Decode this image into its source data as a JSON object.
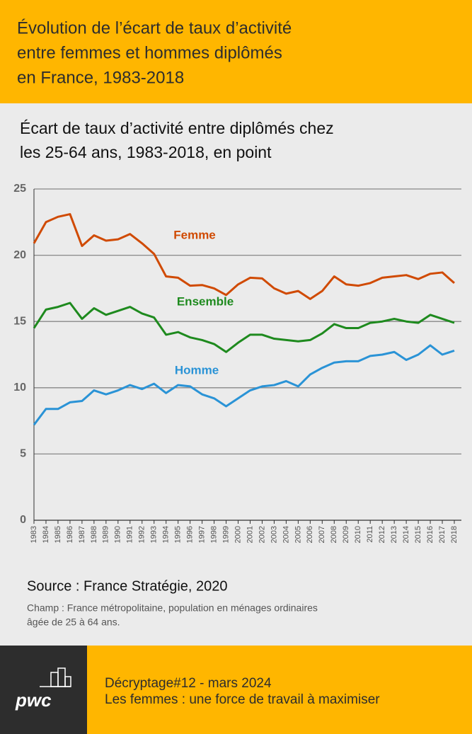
{
  "header": {
    "title_lines": [
      "Évolution de l’écart de taux d’activité",
      "entre femmes et hommes diplômés",
      "en France, 1983-2018"
    ]
  },
  "chart_data": {
    "type": "line",
    "subtitle_lines": [
      "Écart de taux d’activité entre diplômés chez",
      "les 25-64 ans, 1983-2018, en point"
    ],
    "categories": [
      "1983",
      "1984",
      "1985",
      "1986",
      "1987",
      "1988",
      "1989",
      "1990",
      "1991",
      "1992",
      "1993",
      "1994",
      "1995",
      "1996",
      "1997",
      "1998",
      "1999",
      "2000",
      "2001",
      "2002",
      "2003",
      "2004",
      "2005",
      "2006",
      "2007",
      "2008",
      "2009",
      "2010",
      "2011",
      "2012",
      "2013",
      "2014",
      "2015",
      "2016",
      "2017",
      "2018"
    ],
    "series": [
      {
        "name": "Femme",
        "color": "#d04a02",
        "values": [
          20.9,
          22.5,
          22.9,
          23.1,
          20.7,
          21.5,
          21.1,
          21.2,
          21.6,
          20.9,
          20.1,
          18.4,
          18.3,
          17.7,
          17.75,
          17.5,
          17.0,
          17.8,
          18.3,
          18.25,
          17.5,
          17.1,
          17.3,
          16.7,
          17.3,
          18.4,
          17.8,
          17.7,
          17.9,
          18.3,
          18.4,
          18.5,
          18.2,
          18.6,
          18.7,
          17.9
        ]
      },
      {
        "name": "Ensemble",
        "color": "#1e8a1e",
        "values": [
          14.5,
          15.9,
          16.1,
          16.4,
          15.2,
          16.0,
          15.5,
          15.8,
          16.1,
          15.6,
          15.3,
          14.0,
          14.2,
          13.8,
          13.6,
          13.3,
          12.7,
          13.4,
          14.0,
          14.0,
          13.7,
          13.6,
          13.5,
          13.6,
          14.1,
          14.8,
          14.5,
          14.5,
          14.9,
          15.0,
          15.2,
          15.0,
          14.9,
          15.5,
          15.2,
          14.9
        ]
      },
      {
        "name": "Homme",
        "color": "#2a93d6",
        "values": [
          7.2,
          8.4,
          8.4,
          8.9,
          9.0,
          9.8,
          9.5,
          9.8,
          10.2,
          9.9,
          10.3,
          9.6,
          10.2,
          10.1,
          9.5,
          9.2,
          8.6,
          9.2,
          9.8,
          10.1,
          10.2,
          10.5,
          10.1,
          11.0,
          11.5,
          11.9,
          12.0,
          12.0,
          12.4,
          12.5,
          12.7,
          12.1,
          12.5,
          13.2,
          12.5,
          12.8
        ]
      }
    ],
    "ylim": [
      0,
      25
    ],
    "yticks": [
      0,
      5,
      10,
      15,
      20,
      25
    ],
    "grid": true
  },
  "source": {
    "text": "Source : France Stratégie, 2020",
    "note_lines": [
      "Champ : France métropolitaine, population en ménages ordinaires",
      "âgée de 25 à 64 ans."
    ]
  },
  "footer": {
    "logo": "pwc",
    "lines": [
      "Décryptage#12 - mars 2024",
      "Les femmes : une force de travail à maximiser"
    ]
  }
}
